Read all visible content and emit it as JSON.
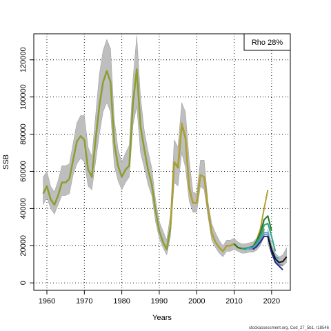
{
  "chart_data": {
    "type": "line",
    "xlabel": "Years",
    "ylabel": "SSB",
    "xlim": [
      1956.5,
      2025
    ],
    "ylim": [
      -4000,
      134000
    ],
    "x_ticks": [
      1960,
      1970,
      1980,
      1990,
      2000,
      2010,
      2020
    ],
    "y_ticks": [
      0,
      20000,
      40000,
      60000,
      80000,
      100000,
      120000
    ],
    "x_tick_labels": [
      "1960",
      "1970",
      "1980",
      "1990",
      "2000",
      "2010",
      "2020"
    ],
    "y_tick_labels": [
      "0",
      "20000",
      "40000",
      "60000",
      "80000",
      "100000",
      "120000"
    ],
    "grid": true,
    "legend": {
      "text": "Rho 28%",
      "placement": "top-right"
    },
    "footer": "stockassessment.org, Cod_27_5b1, r18546",
    "colors": {
      "band": "#bebebe",
      "main": "#8b9e2e",
      "peel1": "#b5a030",
      "peel2": "#1f7a2a",
      "peel3": "#2fa58a",
      "peel4": "#4aa8d8",
      "peel5": "#8090b8",
      "peel6": "#1a2a8a",
      "last": "#111111"
    },
    "confidence_band": {
      "x": [
        1959,
        1960,
        1961,
        1962,
        1963,
        1964,
        1965,
        1966,
        1967,
        1968,
        1969,
        1970,
        1971,
        1972,
        1973,
        1974,
        1975,
        1976,
        1977,
        1978,
        1979,
        1980,
        1981,
        1982,
        1983,
        1984,
        1985,
        1986,
        1987,
        1988,
        1989,
        1990,
        1991,
        1992,
        1993,
        1994,
        1995,
        1996,
        1997,
        1998,
        1999,
        2000,
        2001,
        2002,
        2003,
        2004,
        2005,
        2006,
        2007,
        2008,
        2009,
        2010,
        2011,
        2012,
        2013,
        2014,
        2015,
        2016,
        2017,
        2018
      ],
      "lower": [
        42000,
        46000,
        40000,
        37000,
        42000,
        47000,
        47000,
        48000,
        58000,
        64000,
        67000,
        65000,
        52000,
        50000,
        65000,
        80000,
        92000,
        97000,
        92000,
        63000,
        55000,
        50000,
        54000,
        57000,
        85000,
        95000,
        70000,
        62000,
        53000,
        47000,
        33000,
        24000,
        19000,
        15000,
        25000,
        54000,
        52000,
        70000,
        62000,
        44000,
        38000,
        38000,
        52000,
        50000,
        36000,
        23000,
        19000,
        16000,
        14000,
        17000,
        17000,
        18000,
        17000,
        16000,
        16000,
        16500,
        16500,
        17500,
        20000,
        25000
      ],
      "upper": [
        57000,
        60000,
        52000,
        49000,
        55000,
        63000,
        63000,
        64000,
        75000,
        86000,
        90000,
        90000,
        73000,
        68000,
        90000,
        112000,
        125000,
        131000,
        126000,
        88000,
        72000,
        65000,
        70000,
        74000,
        110000,
        133000,
        100000,
        82000,
        71000,
        62000,
        45000,
        33000,
        28000,
        23000,
        37000,
        77000,
        73000,
        97000,
        92000,
        66000,
        49000,
        48000,
        66000,
        66000,
        44000,
        32000,
        27000,
        23000,
        20000,
        23000,
        23000,
        24000,
        22000,
        21000,
        21000,
        21500,
        22000,
        24000,
        28000,
        34000
      ]
    },
    "series": [
      {
        "values": [
          [
            1959,
            48000
          ],
          [
            1960,
            52000
          ],
          [
            1961,
            45000
          ],
          [
            1962,
            42000
          ],
          [
            1963,
            47000
          ],
          [
            1964,
            54000
          ],
          [
            1965,
            54000
          ],
          [
            1966,
            56000
          ],
          [
            1967,
            66000
          ],
          [
            1968,
            76000
          ],
          [
            1969,
            79000
          ],
          [
            1970,
            77000
          ],
          [
            1971,
            61000
          ],
          [
            1972,
            57000
          ],
          [
            1973,
            77000
          ],
          [
            1974,
            95000
          ],
          [
            1975,
            108000
          ],
          [
            1976,
            114000
          ],
          [
            1977,
            108000
          ],
          [
            1978,
            75000
          ],
          [
            1979,
            63000
          ],
          [
            1980,
            57000
          ],
          [
            1981,
            61000
          ],
          [
            1982,
            63000
          ],
          [
            1983,
            97000
          ],
          [
            1984,
            115000
          ],
          [
            1985,
            84000
          ],
          [
            1986,
            72000
          ],
          [
            1987,
            61000
          ],
          [
            1988,
            53000
          ],
          [
            1989,
            39000
          ],
          [
            1990,
            28000
          ],
          [
            1991,
            22000
          ],
          [
            1992,
            18000
          ],
          [
            1993,
            30000
          ],
          [
            1994,
            65000
          ],
          [
            1995,
            62000
          ],
          [
            1996,
            85000
          ],
          [
            1997,
            78000
          ],
          [
            1998,
            51000
          ],
          [
            1999,
            43000
          ],
          [
            2000,
            43000
          ],
          [
            2001,
            58000
          ],
          [
            2002,
            57000
          ],
          [
            2003,
            40000
          ],
          [
            2004,
            27000
          ],
          [
            2005,
            22000
          ],
          [
            2006,
            19000
          ],
          [
            2007,
            17000
          ],
          [
            2008,
            20000
          ],
          [
            2009,
            20000
          ],
          [
            2010,
            21000
          ],
          [
            2011,
            19000
          ],
          [
            2012,
            18500
          ],
          [
            2013,
            18000
          ],
          [
            2014,
            19000
          ],
          [
            2015,
            19000
          ],
          [
            2016,
            21000
          ],
          [
            2017,
            24000
          ],
          [
            2018,
            29000
          ]
        ]
      },
      {
        "values": [
          [
            1993,
            30000
          ],
          [
            1994,
            65000
          ],
          [
            1995,
            63000
          ],
          [
            1996,
            86000
          ],
          [
            1997,
            79000
          ],
          [
            1998,
            52000
          ],
          [
            1999,
            43000
          ],
          [
            2000,
            43000
          ],
          [
            2001,
            58000
          ],
          [
            2002,
            57000
          ],
          [
            2003,
            40000
          ],
          [
            2004,
            27000
          ],
          [
            2005,
            22000
          ],
          [
            2006,
            19000
          ],
          [
            2007,
            17000
          ],
          [
            2008,
            20000
          ],
          [
            2009,
            20000
          ],
          [
            2010,
            21000
          ],
          [
            2011,
            19000
          ],
          [
            2012,
            18500
          ],
          [
            2013,
            18500
          ],
          [
            2014,
            19000
          ],
          [
            2015,
            19500
          ],
          [
            2016,
            23000
          ],
          [
            2017,
            29000
          ],
          [
            2018,
            40000
          ],
          [
            2019,
            50000
          ]
        ]
      },
      {
        "values": [
          [
            2010,
            21000
          ],
          [
            2011,
            19000
          ],
          [
            2012,
            18500
          ],
          [
            2013,
            18500
          ],
          [
            2014,
            19000
          ],
          [
            2015,
            19500
          ],
          [
            2016,
            22500
          ],
          [
            2017,
            27000
          ],
          [
            2018,
            34000
          ],
          [
            2019,
            36000
          ],
          [
            2020,
            28000
          ]
        ]
      },
      {
        "values": [
          [
            2012,
            18500
          ],
          [
            2013,
            18000
          ],
          [
            2014,
            19000
          ],
          [
            2015,
            19000
          ],
          [
            2016,
            21500
          ],
          [
            2017,
            25000
          ],
          [
            2018,
            31000
          ],
          [
            2019,
            32000
          ],
          [
            2020,
            25000
          ],
          [
            2021,
            17000
          ]
        ]
      },
      {
        "values": [
          [
            2013,
            18000
          ],
          [
            2014,
            18500
          ],
          [
            2015,
            18500
          ],
          [
            2016,
            20500
          ],
          [
            2017,
            23000
          ],
          [
            2018,
            27000
          ],
          [
            2019,
            27000
          ],
          [
            2020,
            18000
          ],
          [
            2021,
            14000
          ],
          [
            2022,
            13000
          ]
        ]
      },
      {
        "values": [
          [
            2014,
            18000
          ],
          [
            2015,
            18500
          ],
          [
            2016,
            20000
          ],
          [
            2017,
            22500
          ],
          [
            2018,
            26000
          ],
          [
            2019,
            26000
          ],
          [
            2020,
            17000
          ],
          [
            2021,
            12000
          ],
          [
            2022,
            10000
          ],
          [
            2023,
            9500
          ]
        ]
      },
      {
        "values": [
          [
            2015,
            18000
          ],
          [
            2016,
            19500
          ],
          [
            2017,
            22000
          ],
          [
            2018,
            25000
          ],
          [
            2019,
            25000
          ],
          [
            2020,
            16500
          ],
          [
            2021,
            11000
          ],
          [
            2022,
            9000
          ],
          [
            2023,
            7000
          ]
        ]
      },
      {
        "values": [
          [
            2019,
            25000
          ],
          [
            2020,
            18000
          ],
          [
            2021,
            13000
          ],
          [
            2022,
            11000
          ],
          [
            2023,
            11500
          ],
          [
            2024,
            14000
          ]
        ]
      }
    ],
    "series_colors": [
      "main",
      "peel1",
      "peel2",
      "peel3",
      "peel4",
      "peel5",
      "peel6",
      "last"
    ],
    "last_band": {
      "x": [
        2019,
        2020,
        2021,
        2022,
        2023,
        2024
      ],
      "lower": [
        21000,
        15000,
        11000,
        9000,
        9000,
        11000
      ],
      "upper": [
        29000,
        21000,
        16000,
        14000,
        15000,
        19000
      ]
    }
  }
}
